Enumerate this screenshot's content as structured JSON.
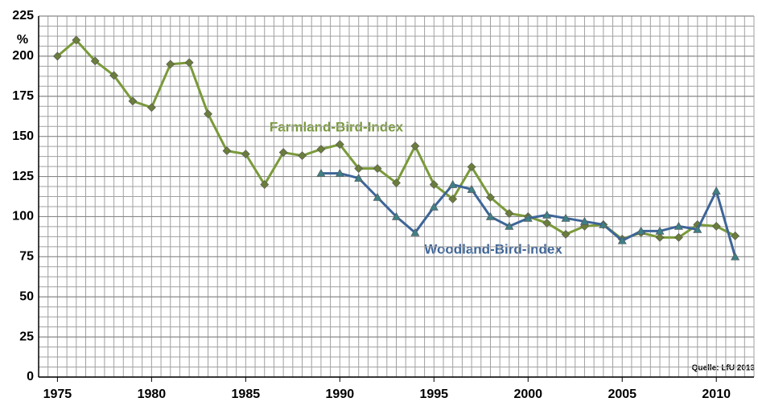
{
  "chart_data": {
    "type": "line",
    "y_label": "%",
    "annotations": [
      "Farmland-Bird-Index",
      "Woodland-Bird-Index",
      "Quelle: LfU 2013"
    ],
    "x": [
      1975,
      1976,
      1977,
      1978,
      1979,
      1980,
      1981,
      1982,
      1983,
      1984,
      1985,
      1986,
      1987,
      1988,
      1989,
      1990,
      1991,
      1992,
      1993,
      1994,
      1995,
      1996,
      1997,
      1998,
      1999,
      2000,
      2001,
      2002,
      2003,
      2004,
      2005,
      2006,
      2007,
      2008,
      2009,
      2010,
      2011
    ],
    "series": [
      {
        "name": "Farmland-Bird-Index",
        "color": "#7a9a3a",
        "marker_color": "#6b7d3c",
        "marker": "diamond",
        "values": [
          200,
          210,
          197,
          188,
          172,
          168,
          195,
          196,
          164,
          141,
          139,
          120,
          140,
          138,
          142,
          145,
          130,
          130,
          121,
          144,
          120,
          111,
          131,
          112,
          102,
          100,
          96,
          89,
          94,
          95,
          86,
          90,
          87,
          87,
          95,
          94,
          88
        ]
      },
      {
        "name": "Woodland-Bird-Index",
        "color": "#3d6598",
        "marker_color": "#3f7f86",
        "marker": "triangle",
        "values": [
          null,
          null,
          null,
          null,
          null,
          null,
          null,
          null,
          null,
          null,
          null,
          null,
          null,
          null,
          127,
          127,
          124,
          112,
          100,
          90,
          106,
          120,
          117,
          100,
          94,
          99,
          101,
          99,
          97,
          95,
          85,
          91,
          91,
          94,
          92,
          116,
          75
        ]
      }
    ],
    "xlim": [
      1974,
      2012
    ],
    "xticks": [
      1975,
      1980,
      1985,
      1990,
      1995,
      2000,
      2005,
      2010
    ],
    "ylim": [
      0,
      225
    ],
    "yticks": [
      0,
      25,
      50,
      75,
      100,
      125,
      150,
      175,
      200,
      225
    ],
    "grid": true
  }
}
